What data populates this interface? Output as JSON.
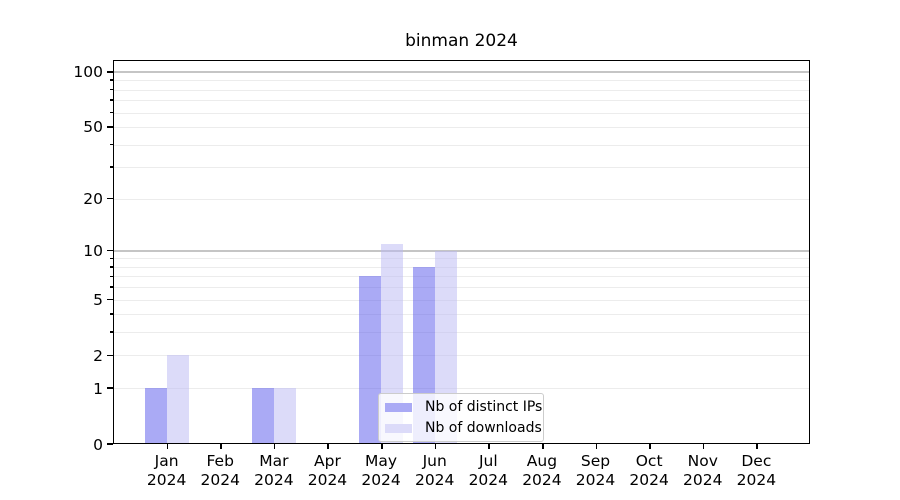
{
  "chart_data": {
    "type": "bar",
    "title": "binman 2024",
    "categories": [
      "Jan 2024",
      "Feb 2024",
      "Mar 2024",
      "Apr 2024",
      "May 2024",
      "Jun 2024",
      "Jul 2024",
      "Aug 2024",
      "Sep 2024",
      "Oct 2024",
      "Nov 2024",
      "Dec 2024"
    ],
    "series": [
      {
        "name": "Nb of distinct IPs",
        "color": "#aaaaf5",
        "fill": "rgba(85,85,235,0.5)",
        "values": [
          1,
          0,
          1,
          0,
          7,
          8,
          0,
          0,
          0,
          0,
          0,
          0
        ]
      },
      {
        "name": "Nb of downloads",
        "color": "#dcdbf9",
        "fill": "rgba(185,183,243,0.5)",
        "values": [
          2,
          0,
          1,
          0,
          11,
          10,
          0,
          0,
          0,
          0,
          0,
          0
        ]
      }
    ],
    "xlabel": "",
    "ylabel": "",
    "yscale": "log1p",
    "ylim": [
      0,
      116
    ],
    "yticks": [
      0,
      1,
      2,
      5,
      10,
      20,
      50,
      100
    ],
    "minor_gridline_values": [
      1,
      2,
      3,
      4,
      5,
      6,
      7,
      8,
      9,
      10,
      20,
      30,
      40,
      50,
      60,
      70,
      80,
      90,
      100
    ],
    "major_gridline_values": [
      10,
      100
    ],
    "grid": true,
    "legend": {
      "position": "lower center"
    }
  }
}
